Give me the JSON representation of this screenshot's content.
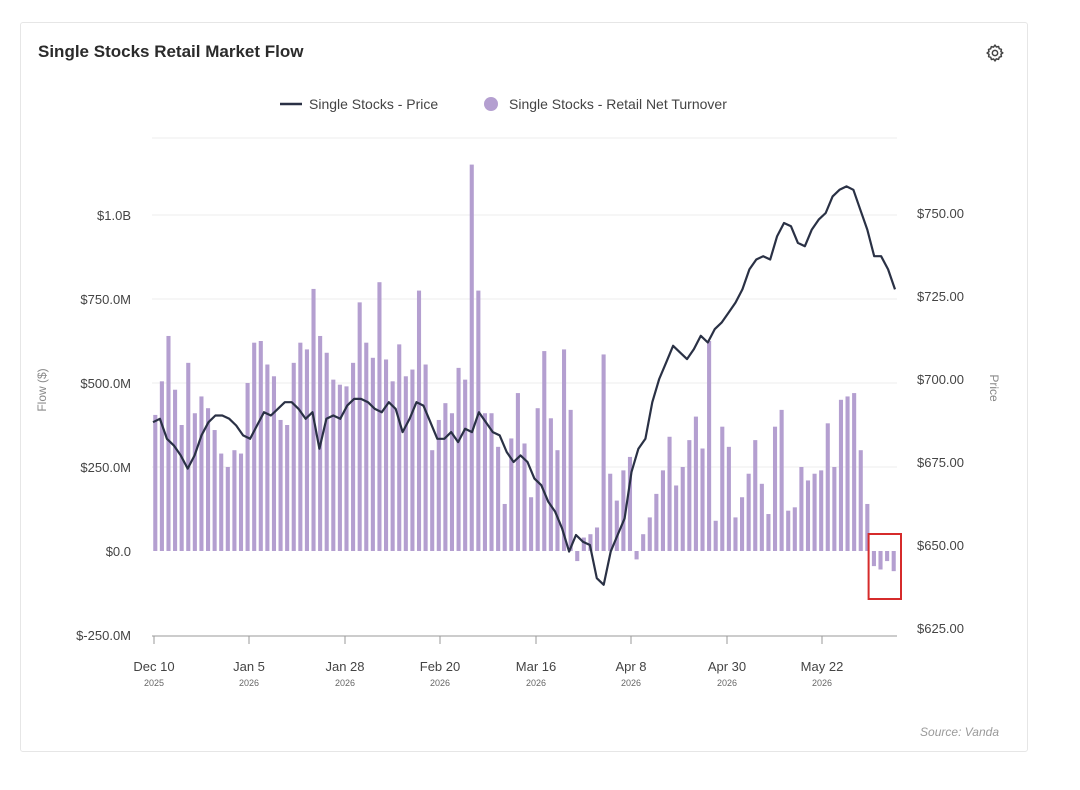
{
  "header": {
    "title": "Single Stocks Retail Market Flow"
  },
  "footer": {
    "source": "Source: Vanda"
  },
  "icons": {
    "settings": "gear-icon"
  },
  "colors": {
    "bar": "#b49fd0",
    "line": "#2a3145",
    "highlight": "#d62b2b",
    "grid": "#ececec",
    "axis": "#555555"
  },
  "chart_data": {
    "type": "bar+line",
    "title": "",
    "legend": [
      {
        "name": "Single Stocks - Price",
        "kind": "line"
      },
      {
        "name": "Single Stocks - Retail Net Turnover",
        "kind": "bar"
      }
    ],
    "legend_position": "top-center",
    "grid": true,
    "x_ticks": [
      {
        "label": "Dec 10",
        "year": "2025"
      },
      {
        "label": "Jan 5",
        "year": "2026"
      },
      {
        "label": "Jan 28",
        "year": "2026"
      },
      {
        "label": "Feb 20",
        "year": "2026"
      },
      {
        "label": "Mar 16",
        "year": "2026"
      },
      {
        "label": "Apr 8",
        "year": "2026"
      },
      {
        "label": "Apr 30",
        "year": "2026"
      },
      {
        "label": "May 22",
        "year": "2026"
      }
    ],
    "left_axis": {
      "label": "Flow ($)",
      "ylim": [
        -250000000,
        1250000000
      ],
      "ticks": [
        {
          "value": -250000000,
          "label": "$-250.0M"
        },
        {
          "value": 0,
          "label": "$0.0"
        },
        {
          "value": 250000000,
          "label": "$250.0M"
        },
        {
          "value": 500000000,
          "label": "$500.0M"
        },
        {
          "value": 750000000,
          "label": "$750.0M"
        },
        {
          "value": 1000000000,
          "label": "$1.0B"
        }
      ]
    },
    "right_axis": {
      "label": "Price",
      "ylim": [
        625,
        750
      ],
      "ticks": [
        {
          "value": 625,
          "label": "$625.00"
        },
        {
          "value": 650,
          "label": "$650.00"
        },
        {
          "value": 675,
          "label": "$675.00"
        },
        {
          "value": 700,
          "label": "$700.00"
        },
        {
          "value": 725,
          "label": "$725.00"
        },
        {
          "value": 750,
          "label": "$750.00"
        }
      ]
    },
    "series": [
      {
        "name": "Single Stocks - Retail Net Turnover",
        "axis": "left",
        "values": [
          405000000,
          505000000,
          640000000,
          480000000,
          375000000,
          560000000,
          410000000,
          460000000,
          425000000,
          360000000,
          290000000,
          250000000,
          300000000,
          290000000,
          500000000,
          620000000,
          625000000,
          555000000,
          520000000,
          390000000,
          375000000,
          560000000,
          620000000,
          600000000,
          780000000,
          640000000,
          590000000,
          510000000,
          495000000,
          490000000,
          560000000,
          740000000,
          620000000,
          575000000,
          800000000,
          570000000,
          505000000,
          615000000,
          520000000,
          540000000,
          775000000,
          555000000,
          300000000,
          390000000,
          440000000,
          410000000,
          545000000,
          510000000,
          1150000000,
          775000000,
          410000000,
          410000000,
          310000000,
          140000000,
          335000000,
          470000000,
          320000000,
          160000000,
          425000000,
          595000000,
          395000000,
          300000000,
          600000000,
          420000000,
          -30000000,
          40000000,
          50000000,
          70000000,
          585000000,
          230000000,
          150000000,
          240000000,
          280000000,
          -25000000,
          50000000,
          100000000,
          170000000,
          240000000,
          340000000,
          195000000,
          250000000,
          330000000,
          400000000,
          305000000,
          625000000,
          90000000,
          370000000,
          310000000,
          100000000,
          160000000,
          230000000,
          330000000,
          200000000,
          110000000,
          370000000,
          420000000,
          120000000,
          130000000,
          250000000,
          210000000,
          230000000,
          240000000,
          380000000,
          250000000,
          450000000,
          460000000,
          470000000,
          300000000,
          140000000,
          -45000000,
          -55000000,
          -30000000,
          -60000000
        ],
        "highlight_last": 4
      },
      {
        "name": "Single Stocks - Price",
        "axis": "right",
        "values": [
          687,
          688,
          682,
          680,
          677,
          673,
          677,
          683,
          687,
          689,
          689,
          688,
          686,
          683,
          682,
          686,
          690,
          689,
          691,
          693,
          693,
          691,
          688,
          690,
          679,
          688,
          689,
          688,
          692,
          694,
          694,
          693,
          691,
          690,
          693,
          691,
          684,
          688,
          693,
          692,
          687,
          682,
          682,
          684,
          681,
          685,
          684,
          690,
          687,
          684,
          683,
          678,
          675,
          677,
          675,
          670,
          668,
          663,
          660,
          655,
          648,
          653,
          651,
          650,
          640,
          638,
          648,
          653,
          658,
          672,
          679,
          682,
          693,
          700,
          705,
          710,
          708,
          706,
          709,
          713,
          711,
          715,
          717,
          720,
          723,
          727,
          733,
          736,
          737,
          736,
          743,
          747,
          746,
          741,
          740,
          745,
          748,
          750,
          755,
          757,
          758,
          757,
          751,
          745,
          737,
          737,
          733,
          727
        ]
      }
    ]
  }
}
